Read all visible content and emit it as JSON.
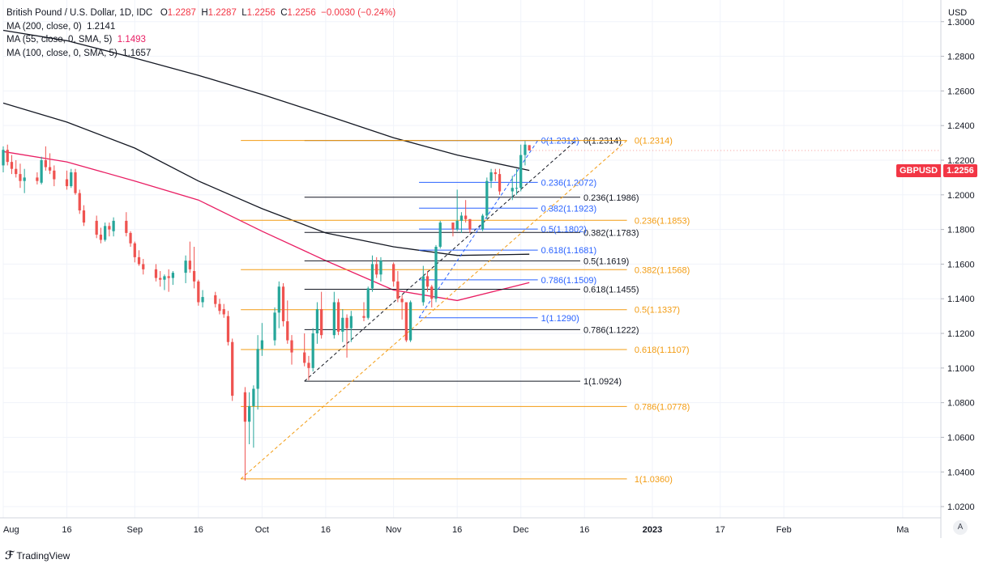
{
  "header": {
    "title": "British Pound / U.S. Dollar, 1D, IDC",
    "o_label": "O",
    "open": "1.2287",
    "h_label": "H",
    "high": "1.2287",
    "l_label": "L",
    "low": "1.2256",
    "c_label": "C",
    "close": "1.2256",
    "change": "−0.0030 (−0.24%)"
  },
  "indicators": [
    {
      "label": "MA (200, close, 0)",
      "value": "1.2141",
      "color": "#131722"
    },
    {
      "label": "MA (55, close, 0, SMA, 5)",
      "value": "1.1493",
      "color": "#e91e63"
    },
    {
      "label": "MA (100, close, 0, SMA, 5)",
      "value": "1.1657",
      "color": "#131722"
    }
  ],
  "axis": {
    "currency": "USD",
    "auto_label": "A"
  },
  "symbol_badge": {
    "symbol": "GBPUSD",
    "price": "1.2256"
  },
  "branding": {
    "name": "TradingView"
  },
  "colors": {
    "up": "#26a69a",
    "down": "#ef5350",
    "fib_black": "#131722",
    "fib_blue": "#2962ff",
    "fib_orange": "#f39c12",
    "ma55": "#e91e63"
  },
  "chart_data": {
    "type": "candlestick",
    "title": "British Pound / U.S. Dollar, 1D, IDC",
    "ylabel": "USD",
    "ylim": [
      1.0135,
      1.3125
    ],
    "ytick_values": [
      1.02,
      1.04,
      1.06,
      1.08,
      1.1,
      1.12,
      1.14,
      1.16,
      1.18,
      1.2,
      1.22,
      1.24,
      1.26,
      1.28,
      1.3
    ],
    "ytick_labels": [
      "1.0200",
      "1.0400",
      "1.0600",
      "1.0800",
      "1.1000",
      "1.1200",
      "1.1400",
      "1.1600",
      "1.1800",
      "1.2000",
      "1.2200",
      "1.2400",
      "1.2600",
      "1.2800",
      "1.3000"
    ],
    "x_range_days": [
      0,
      221
    ],
    "xticks": [
      {
        "day": 0,
        "label": "Aug"
      },
      {
        "day": 15,
        "label": "16"
      },
      {
        "day": 31,
        "label": "Sep"
      },
      {
        "day": 46,
        "label": "16"
      },
      {
        "day": 61,
        "label": "Oct"
      },
      {
        "day": 76,
        "label": "16"
      },
      {
        "day": 92,
        "label": "Nov"
      },
      {
        "day": 107,
        "label": "16"
      },
      {
        "day": 122,
        "label": "Dec"
      },
      {
        "day": 137,
        "label": "16"
      },
      {
        "day": 153,
        "label": "2023"
      },
      {
        "day": 169,
        "label": "17"
      },
      {
        "day": 184,
        "label": "Feb"
      },
      {
        "day": 212,
        "label": "Ma"
      }
    ],
    "candles": [
      [
        0,
        1.217,
        1.228,
        1.213,
        1.226
      ],
      [
        1,
        1.226,
        1.229,
        1.217,
        1.219
      ],
      [
        2,
        1.219,
        1.223,
        1.212,
        1.215
      ],
      [
        3,
        1.215,
        1.22,
        1.21,
        1.212
      ],
      [
        4,
        1.212,
        1.218,
        1.204,
        1.208
      ],
      [
        5,
        1.208,
        1.215,
        1.201,
        1.21
      ],
      [
        8,
        1.21,
        1.213,
        1.206,
        1.208
      ],
      [
        9,
        1.207,
        1.222,
        1.206,
        1.22
      ],
      [
        10,
        1.22,
        1.228,
        1.214,
        1.216
      ],
      [
        11,
        1.216,
        1.224,
        1.212,
        1.214
      ],
      [
        12,
        1.214,
        1.217,
        1.205,
        1.209
      ],
      [
        15,
        1.209,
        1.214,
        1.203,
        1.205
      ],
      [
        16,
        1.205,
        1.215,
        1.204,
        1.213
      ],
      [
        17,
        1.213,
        1.215,
        1.2,
        1.201
      ],
      [
        18,
        1.201,
        1.203,
        1.189,
        1.191
      ],
      [
        19,
        1.191,
        1.194,
        1.182,
        1.184
      ],
      [
        22,
        1.185,
        1.188,
        1.175,
        1.177
      ],
      [
        23,
        1.177,
        1.181,
        1.172,
        1.174
      ],
      [
        24,
        1.174,
        1.184,
        1.173,
        1.182
      ],
      [
        25,
        1.182,
        1.184,
        1.176,
        1.18
      ],
      [
        26,
        1.179,
        1.187,
        1.176,
        1.185
      ],
      [
        29,
        1.185,
        1.19,
        1.176,
        1.178
      ],
      [
        30,
        1.178,
        1.179,
        1.17,
        1.172
      ],
      [
        31,
        1.172,
        1.173,
        1.161,
        1.164
      ],
      [
        32,
        1.164,
        1.168,
        1.159,
        1.16
      ],
      [
        33,
        1.16,
        1.163,
        1.154,
        1.157
      ],
      [
        36,
        1.157,
        1.16,
        1.15,
        1.152
      ],
      [
        37,
        1.152,
        1.156,
        1.147,
        1.151
      ],
      [
        38,
        1.151,
        1.154,
        1.145,
        1.153
      ],
      [
        39,
        1.153,
        1.157,
        1.144,
        1.152
      ],
      [
        40,
        1.152,
        1.156,
        1.148,
        1.155
      ],
      [
        43,
        1.155,
        1.165,
        1.149,
        1.162
      ],
      [
        44,
        1.162,
        1.173,
        1.155,
        1.157
      ],
      [
        45,
        1.156,
        1.17,
        1.146,
        1.15
      ],
      [
        46,
        1.15,
        1.151,
        1.136,
        1.138
      ],
      [
        47,
        1.138,
        1.145,
        1.135,
        1.141
      ],
      [
        50,
        1.142,
        1.144,
        1.135,
        1.137
      ],
      [
        51,
        1.137,
        1.14,
        1.131,
        1.133
      ],
      [
        52,
        1.134,
        1.137,
        1.129,
        1.131
      ],
      [
        53,
        1.13,
        1.133,
        1.113,
        1.115
      ],
      [
        54,
        1.115,
        1.117,
        1.081,
        1.084
      ],
      [
        57,
        1.086,
        1.089,
        1.035,
        1.069
      ],
      [
        58,
        1.069,
        1.086,
        1.056,
        1.078
      ],
      [
        59,
        1.078,
        1.09,
        1.054,
        1.088
      ],
      [
        60,
        1.088,
        1.119,
        1.076,
        1.111
      ],
      [
        61,
        1.111,
        1.126,
        1.107,
        1.116
      ],
      [
        64,
        1.116,
        1.135,
        1.113,
        1.132
      ],
      [
        65,
        1.132,
        1.15,
        1.123,
        1.147
      ],
      [
        66,
        1.147,
        1.149,
        1.124,
        1.127
      ],
      [
        67,
        1.127,
        1.139,
        1.114,
        1.116
      ],
      [
        68,
        1.116,
        1.119,
        1.102,
        1.109
      ],
      [
        71,
        1.109,
        1.12,
        1.101,
        1.103
      ],
      [
        72,
        1.103,
        1.107,
        1.093,
        1.1
      ],
      [
        73,
        1.1,
        1.123,
        1.098,
        1.12
      ],
      [
        74,
        1.12,
        1.138,
        1.114,
        1.134
      ],
      [
        75,
        1.134,
        1.144,
        1.117,
        1.119
      ],
      [
        78,
        1.119,
        1.144,
        1.117,
        1.138
      ],
      [
        79,
        1.138,
        1.14,
        1.119,
        1.121
      ],
      [
        80,
        1.121,
        1.134,
        1.115,
        1.129
      ],
      [
        81,
        1.129,
        1.131,
        1.106,
        1.123
      ],
      [
        82,
        1.123,
        1.133,
        1.115,
        1.13
      ],
      [
        85,
        1.13,
        1.138,
        1.127,
        1.129
      ],
      [
        86,
        1.129,
        1.147,
        1.128,
        1.146
      ],
      [
        87,
        1.146,
        1.165,
        1.144,
        1.16
      ],
      [
        88,
        1.16,
        1.164,
        1.152,
        1.154
      ],
      [
        89,
        1.154,
        1.164,
        1.15,
        1.162
      ],
      [
        92,
        1.16,
        1.161,
        1.147,
        1.15
      ],
      [
        93,
        1.15,
        1.156,
        1.138,
        1.14
      ],
      [
        94,
        1.14,
        1.142,
        1.128,
        1.138
      ],
      [
        95,
        1.138,
        1.138,
        1.115,
        1.116
      ],
      [
        96,
        1.116,
        1.139,
        1.115,
        1.138
      ],
      [
        99,
        1.138,
        1.159,
        1.136,
        1.153
      ],
      [
        100,
        1.153,
        1.156,
        1.144,
        1.147
      ],
      [
        101,
        1.147,
        1.148,
        1.135,
        1.14
      ],
      [
        102,
        1.14,
        1.171,
        1.138,
        1.17
      ],
      [
        103,
        1.17,
        1.185,
        1.169,
        1.184
      ],
      [
        106,
        1.184,
        1.184,
        1.176,
        1.18
      ],
      [
        107,
        1.18,
        1.203,
        1.179,
        1.185
      ],
      [
        108,
        1.185,
        1.19,
        1.178,
        1.188
      ],
      [
        109,
        1.188,
        1.197,
        1.184,
        1.186
      ],
      [
        110,
        1.186,
        1.186,
        1.178,
        1.18
      ],
      [
        113,
        1.18,
        1.189,
        1.179,
        1.188
      ],
      [
        114,
        1.188,
        1.21,
        1.186,
        1.208
      ],
      [
        115,
        1.208,
        1.215,
        1.204,
        1.213
      ],
      [
        116,
        1.213,
        1.215,
        1.208,
        1.212
      ],
      [
        117,
        1.212,
        1.215,
        1.2,
        1.202
      ],
      [
        120,
        1.202,
        1.211,
        1.197,
        1.204
      ],
      [
        121,
        1.204,
        1.215,
        1.2,
        1.204
      ],
      [
        122,
        1.204,
        1.229,
        1.202,
        1.223
      ],
      [
        123,
        1.223,
        1.231,
        1.217,
        1.229
      ],
      [
        124,
        1.2287,
        1.2287,
        1.2256,
        1.2256
      ]
    ],
    "moving_averages": [
      {
        "name": "MA (200, close, 0)",
        "color": "#131722",
        "points": [
          [
            0,
            1.295
          ],
          [
            15,
            1.289
          ],
          [
            31,
            1.279
          ],
          [
            46,
            1.269
          ],
          [
            61,
            1.258
          ],
          [
            76,
            1.246
          ],
          [
            92,
            1.233
          ],
          [
            107,
            1.223
          ],
          [
            124,
            1.2141
          ]
        ]
      },
      {
        "name": "MA (100, close, 0, SMA, 5)",
        "color": "#131722",
        "points": [
          [
            0,
            1.253
          ],
          [
            15,
            1.242
          ],
          [
            31,
            1.227
          ],
          [
            46,
            1.208
          ],
          [
            61,
            1.192
          ],
          [
            76,
            1.178
          ],
          [
            92,
            1.17
          ],
          [
            107,
            1.165
          ],
          [
            124,
            1.1657
          ]
        ]
      },
      {
        "name": "MA (55, close, 0, SMA, 5)",
        "color": "#e91e63",
        "points": [
          [
            0,
            1.225
          ],
          [
            15,
            1.219
          ],
          [
            31,
            1.208
          ],
          [
            46,
            1.197
          ],
          [
            61,
            1.179
          ],
          [
            76,
            1.162
          ],
          [
            92,
            1.145
          ],
          [
            107,
            1.139
          ],
          [
            124,
            1.1493
          ]
        ]
      }
    ],
    "fib_sets": [
      {
        "name": "fib-black",
        "color": "#131722",
        "label_color": "#131722",
        "dash": "4,3",
        "anchor": {
          "start_day": 71,
          "start_price": 1.0924,
          "end_day": 135,
          "end_price": 1.2314
        },
        "line_start_day": 71,
        "line_end_day": 136,
        "label_day": 136,
        "levels": [
          {
            "price": 1.2314,
            "label": "0(1.2314)"
          },
          {
            "price": 1.1986,
            "label": "0.236(1.1986)"
          },
          {
            "price": 1.1783,
            "label": "0.382(1.1783)"
          },
          {
            "price": 1.1619,
            "label": "0.5(1.1619)"
          },
          {
            "price": 1.1455,
            "label": "0.618(1.1455)"
          },
          {
            "price": 1.1222,
            "label": "0.786(1.1222)"
          },
          {
            "price": 1.0924,
            "label": "1(1.0924)"
          }
        ]
      },
      {
        "name": "fib-blue",
        "color": "#2962ff",
        "label_color": "#2962ff",
        "dash": "4,3",
        "anchor": {
          "start_day": 98,
          "start_price": 1.129,
          "end_day": 126,
          "end_price": 1.2314
        },
        "line_start_day": 98,
        "line_end_day": 126,
        "label_day": 126,
        "levels": [
          {
            "price": 1.2314,
            "label": "0(1.2314)"
          },
          {
            "price": 1.2072,
            "label": "0.236(1.2072)"
          },
          {
            "price": 1.1923,
            "label": "0.382(1.1923)"
          },
          {
            "price": 1.1802,
            "label": "0.5(1.1802)"
          },
          {
            "price": 1.1681,
            "label": "0.618(1.1681)"
          },
          {
            "price": 1.1509,
            "label": "0.786(1.1509)"
          },
          {
            "price": 1.129,
            "label": "1(1.1290)"
          }
        ]
      },
      {
        "name": "fib-orange",
        "color": "#f39c12",
        "label_color": "#f39c12",
        "dash": "4,3",
        "anchor": {
          "start_day": 56,
          "start_price": 1.036,
          "end_day": 147,
          "end_price": 1.2314
        },
        "line_start_day": 56,
        "line_end_day": 147,
        "label_day": 148,
        "levels": [
          {
            "price": 1.2314,
            "label": "0(1.2314)"
          },
          {
            "price": 1.1853,
            "label": "0.236(1.1853)"
          },
          {
            "price": 1.1568,
            "label": "0.382(1.1568)"
          },
          {
            "price": 1.1337,
            "label": "0.5(1.1337)"
          },
          {
            "price": 1.1107,
            "label": "0.618(1.1107)"
          },
          {
            "price": 1.0778,
            "label": "0.786(1.0778)"
          },
          {
            "price": 1.036,
            "label": "1(1.0360)"
          }
        ]
      }
    ],
    "last_price": 1.2256
  }
}
